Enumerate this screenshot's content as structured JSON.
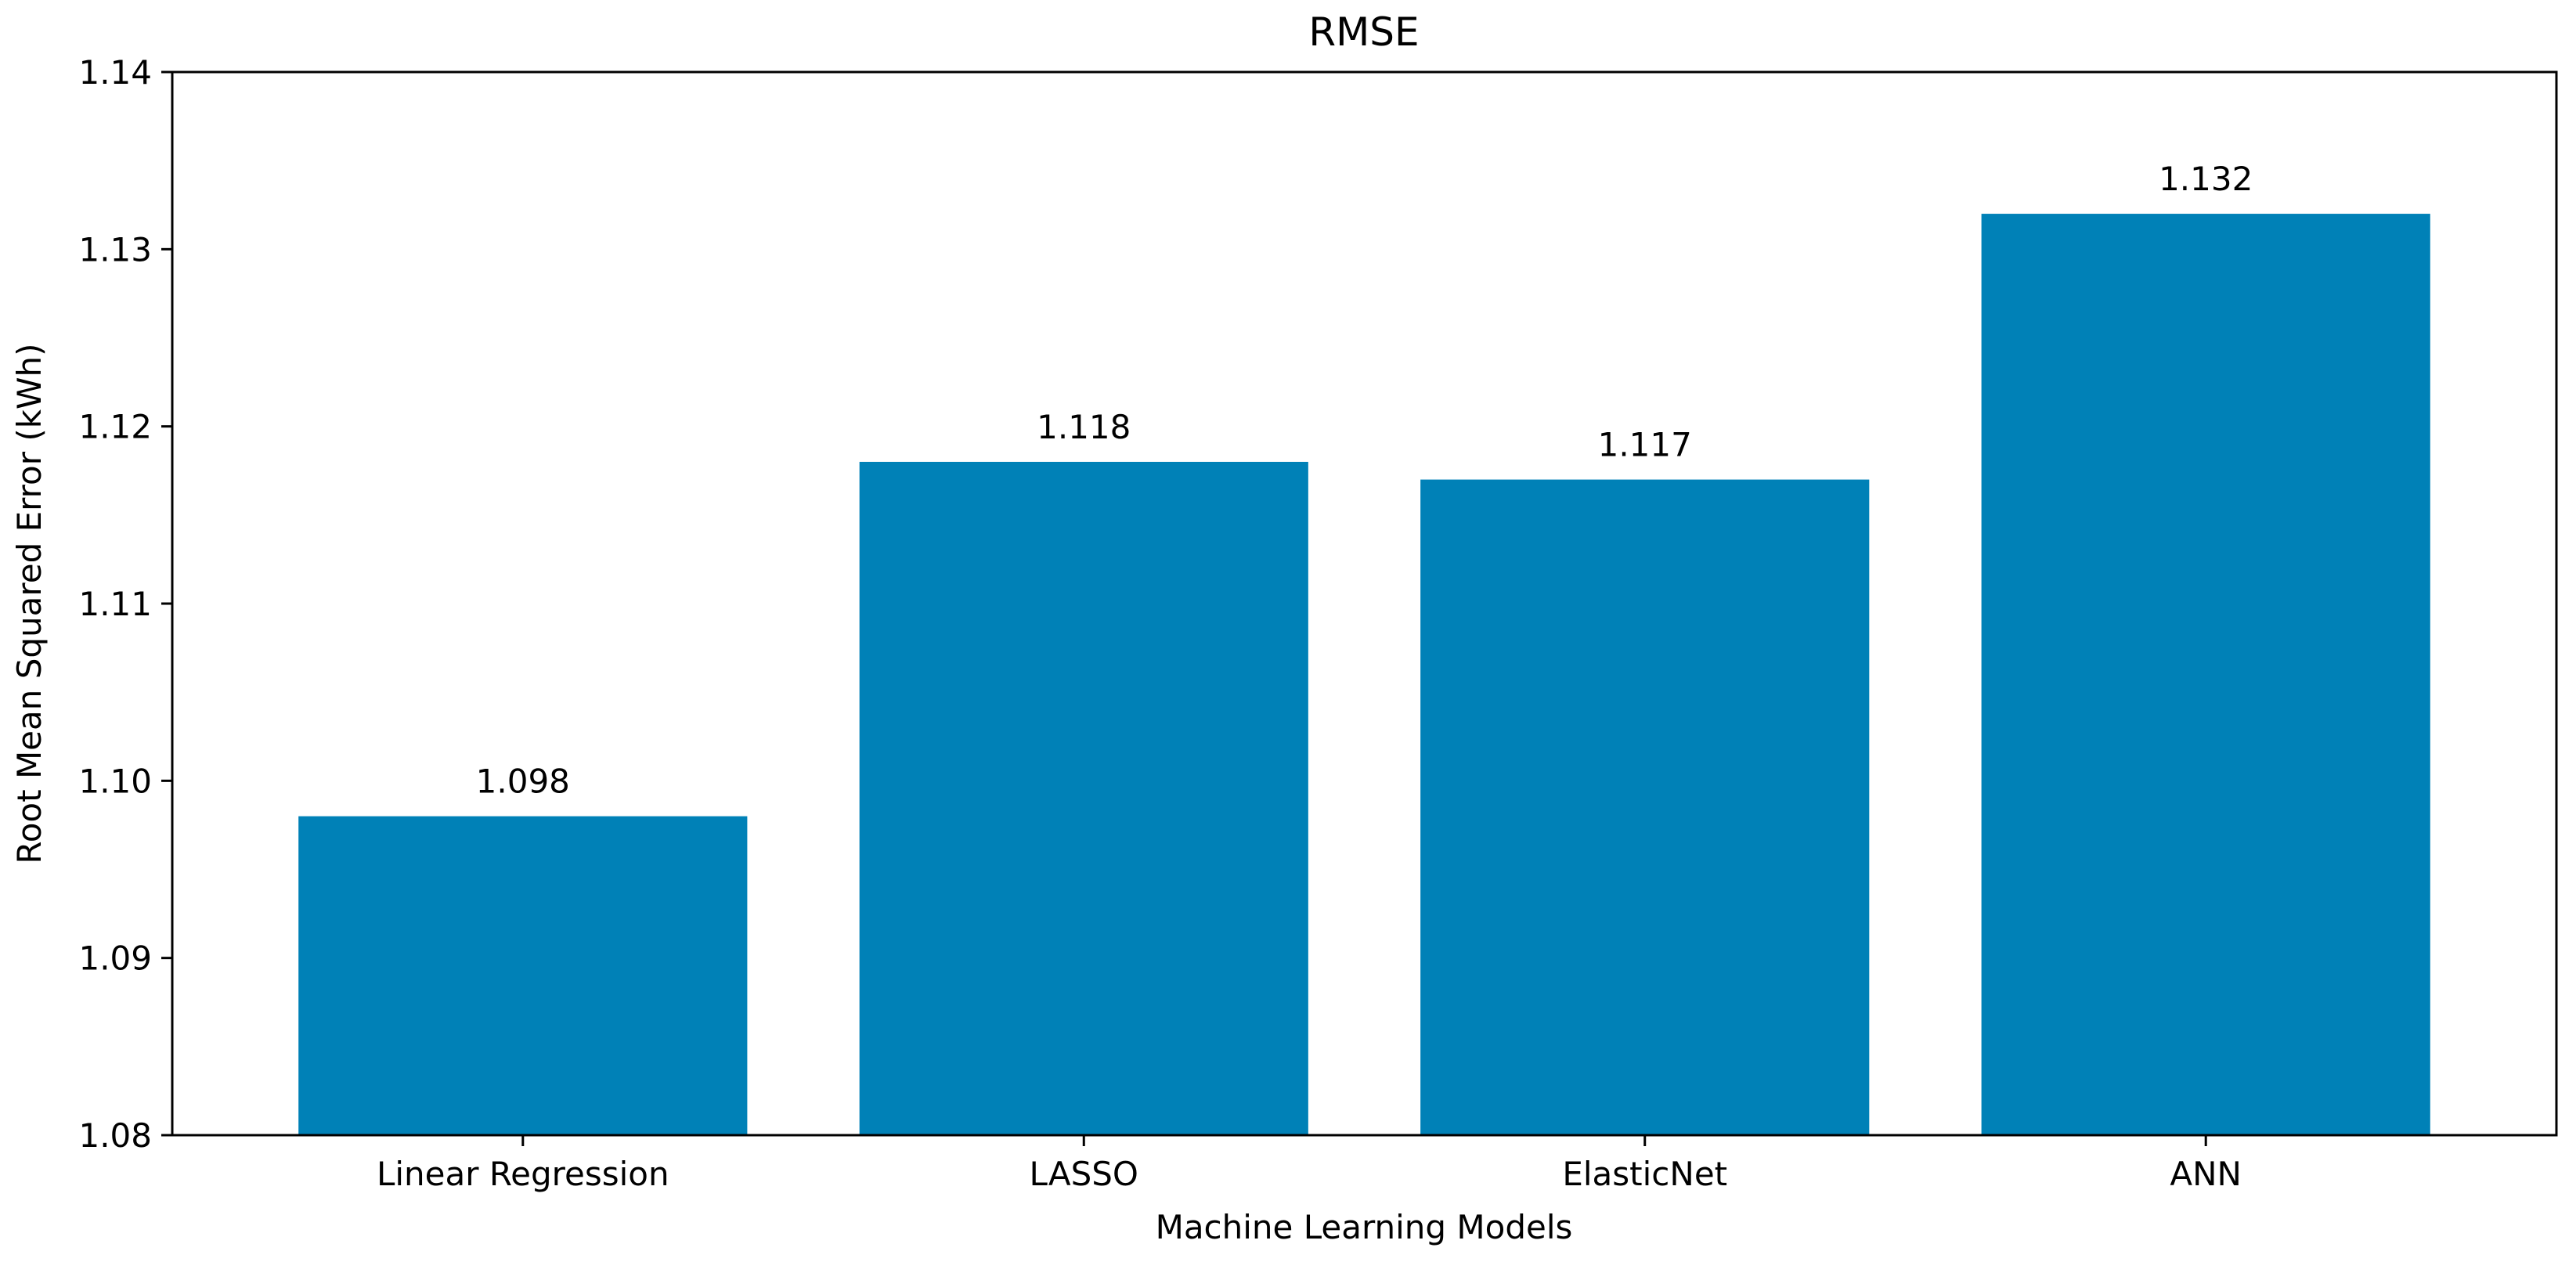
{
  "chart_data": {
    "type": "bar",
    "title": "RMSE",
    "xlabel": "Machine Learning Models",
    "ylabel": "Root Mean Squared Error (kWh)",
    "categories": [
      "Linear Regression",
      "LASSO",
      "ElasticNet",
      "ANN"
    ],
    "values": [
      1.098,
      1.118,
      1.117,
      1.132
    ],
    "value_labels": [
      "1.098",
      "1.118",
      "1.117",
      "1.132"
    ],
    "ylim": [
      1.08,
      1.14
    ],
    "yticks": [
      1.08,
      1.09,
      1.1,
      1.11,
      1.12,
      1.13,
      1.14
    ],
    "ytick_labels": [
      "1.08",
      "1.09",
      "1.10",
      "1.11",
      "1.12",
      "1.13",
      "1.14"
    ],
    "grid": false,
    "legend": "none",
    "bar_color": "#0081b7"
  }
}
